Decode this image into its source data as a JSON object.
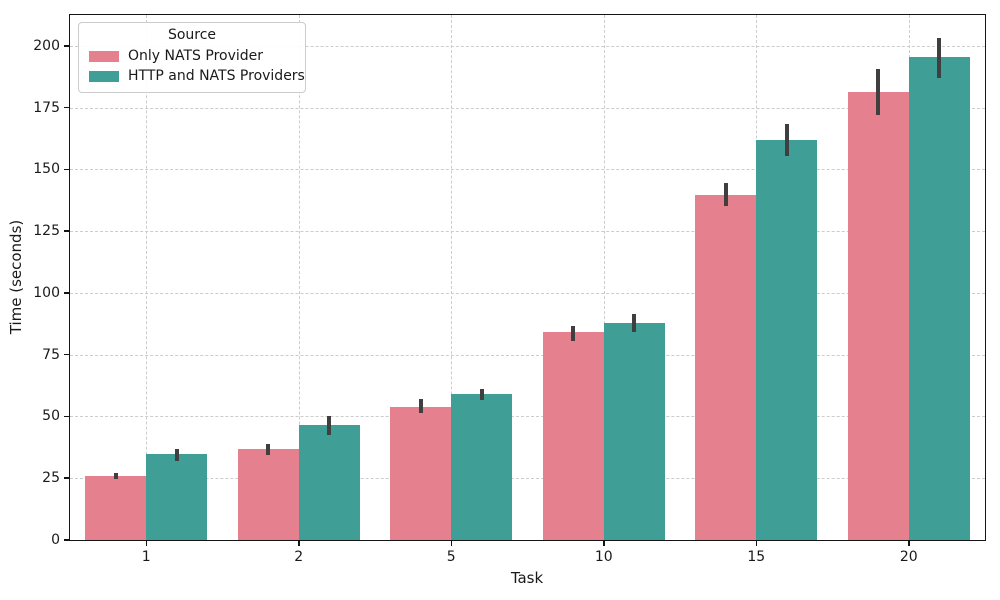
{
  "chart_data": {
    "type": "bar",
    "title": "",
    "xlabel": "Task",
    "ylabel": "Time (seconds)",
    "categories": [
      "1",
      "2",
      "5",
      "10",
      "15",
      "20"
    ],
    "series": [
      {
        "name": "Only NATS Provider",
        "color": "#e5818f",
        "values": [
          26,
          37,
          54,
          84,
          139.5,
          181.5
        ],
        "ci_low": [
          24.5,
          34.5,
          51.5,
          80.5,
          135,
          172
        ],
        "ci_high": [
          27,
          39,
          57,
          86.5,
          144.5,
          190.5
        ]
      },
      {
        "name": "HTTP and NATS Providers",
        "color": "#3f9e95",
        "values": [
          35,
          46.5,
          59,
          88,
          162,
          195.5
        ],
        "ci_low": [
          32,
          42.5,
          56.5,
          84,
          155.5,
          187
        ],
        "ci_high": [
          37,
          50,
          61,
          91.5,
          168.5,
          203
        ]
      }
    ],
    "ylim": [
      0,
      212.5
    ],
    "yticks": [
      0,
      25,
      50,
      75,
      100,
      125,
      150,
      175,
      200
    ],
    "grid": "dashed, horizontal and vertical",
    "legend": {
      "title": "Source",
      "position": "upper left"
    },
    "error_bar_color": "#3f3f3f",
    "spine_color": "#141414",
    "grid_color": "#cccccc"
  }
}
